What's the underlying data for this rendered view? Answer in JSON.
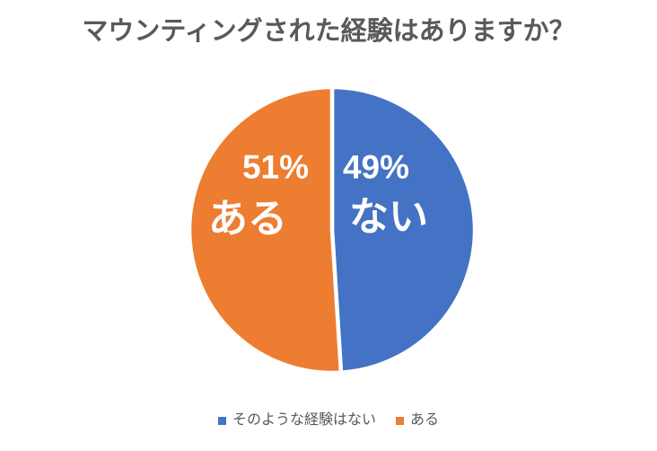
{
  "chart_data": {
    "type": "pie",
    "title": "マウンティングされた経験はありますか？",
    "categories": [
      "そのような経験はない",
      "ある"
    ],
    "values": [
      49,
      51
    ],
    "slices": [
      {
        "legend_label": "そのような経験はない",
        "slice_label": "ない",
        "pct_label": "49%",
        "value": 49,
        "color": "#4472C4"
      },
      {
        "legend_label": "ある",
        "slice_label": "ある",
        "pct_label": "51%",
        "value": 51,
        "color": "#ED7D31"
      }
    ],
    "start_angle_deg": 0,
    "direction": "clockwise",
    "legend_position": "bottom",
    "data_labels": "percent and category shown inside slices",
    "colors": {
      "background": "#FFFFFF",
      "title_text": "#595959",
      "legend_text": "#595959",
      "slice_label_text": "#FFFFFF",
      "slice_border": "#FFFFFF",
      "blue": "#4472C4",
      "orange": "#ED7D31"
    }
  }
}
